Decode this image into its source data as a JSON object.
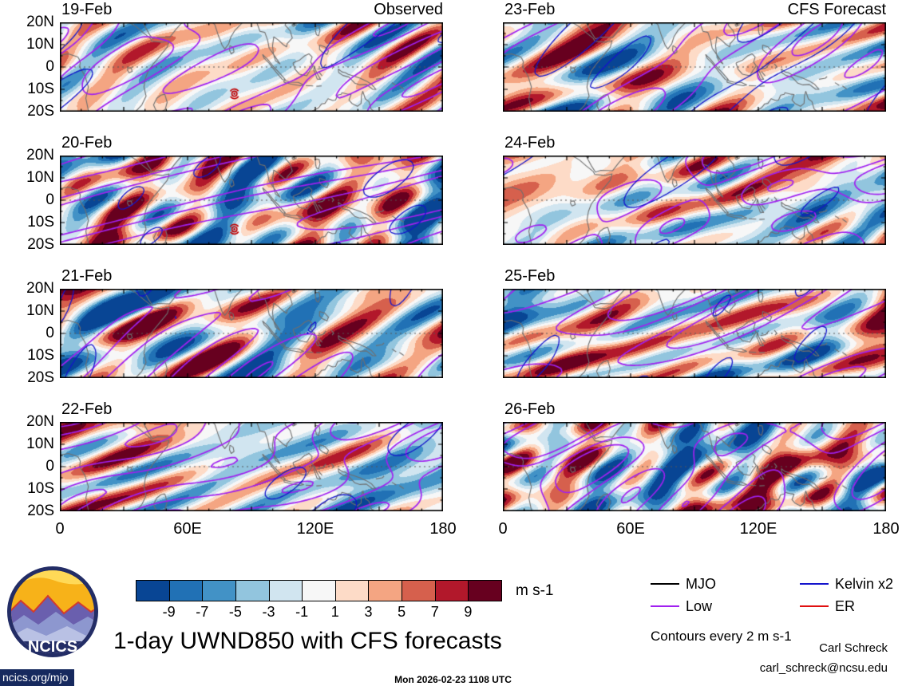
{
  "figure": {
    "title": "1-day UWND850 with CFS forecasts",
    "contour_note": "Contours every 2 m s-1",
    "units_label": "m s-1",
    "credit_name": "Carl Schreck",
    "credit_email": "carl_schreck@ncsu.edu",
    "footer_link": "ncics.org/mjo",
    "timestamp": "Mon 2026-02-23 1108 UTC",
    "logo_text": "NCICS"
  },
  "chart_data": {
    "type": "heatmap",
    "title": "1-day UWND850 with CFS forecasts",
    "column_headers": [
      "Observed",
      "CFS Forecast"
    ],
    "panels": [
      {
        "date": "19-Feb",
        "column": 0,
        "row": 0,
        "kind": "observed",
        "seed": 3,
        "storm": {
          "lon": 82,
          "lat": -12
        }
      },
      {
        "date": "20-Feb",
        "column": 0,
        "row": 1,
        "kind": "observed",
        "seed": 5,
        "storm": {
          "lon": 82,
          "lat": -13
        }
      },
      {
        "date": "21-Feb",
        "column": 0,
        "row": 2,
        "kind": "observed",
        "seed": 8
      },
      {
        "date": "22-Feb",
        "column": 0,
        "row": 3,
        "kind": "observed",
        "seed": 13
      },
      {
        "date": "23-Feb",
        "column": 1,
        "row": 0,
        "kind": "forecast",
        "seed": 21
      },
      {
        "date": "24-Feb",
        "column": 1,
        "row": 1,
        "kind": "forecast",
        "seed": 34
      },
      {
        "date": "25-Feb",
        "column": 1,
        "row": 2,
        "kind": "forecast",
        "seed": 55
      },
      {
        "date": "26-Feb",
        "column": 1,
        "row": 3,
        "kind": "forecast",
        "seed": 89
      }
    ],
    "axes": {
      "lat_tick_labels": [
        "20N",
        "10N",
        "0",
        "10S",
        "20S"
      ],
      "lon_tick_labels": [
        "0",
        "60E",
        "120E",
        "180"
      ],
      "lon_range_deg": [
        0,
        180
      ],
      "lat_range_deg": [
        -20,
        20
      ]
    },
    "colorbar": {
      "units": "m s-1",
      "tick_labels": [
        "-9",
        "-7",
        "-5",
        "-3",
        "-1",
        "1",
        "3",
        "5",
        "7",
        "9"
      ],
      "levels": [
        -9,
        -7,
        -5,
        -3,
        -1,
        1,
        3,
        5,
        7,
        9
      ],
      "colors": [
        "#084594",
        "#2171b5",
        "#4292c6",
        "#92c5de",
        "#d1e5f0",
        "#f7f7f7",
        "#fddbc7",
        "#f4a582",
        "#d6604d",
        "#b2182b",
        "#67001f"
      ]
    },
    "legend": [
      {
        "label": "MJO",
        "color": "#000000"
      },
      {
        "label": "Kelvin x2",
        "color": "#1414cc"
      },
      {
        "label": "Low",
        "color": "#a020f0"
      },
      {
        "label": "ER",
        "color": "#e01010"
      }
    ],
    "contour_note": "Contours every 2 m s-1"
  }
}
